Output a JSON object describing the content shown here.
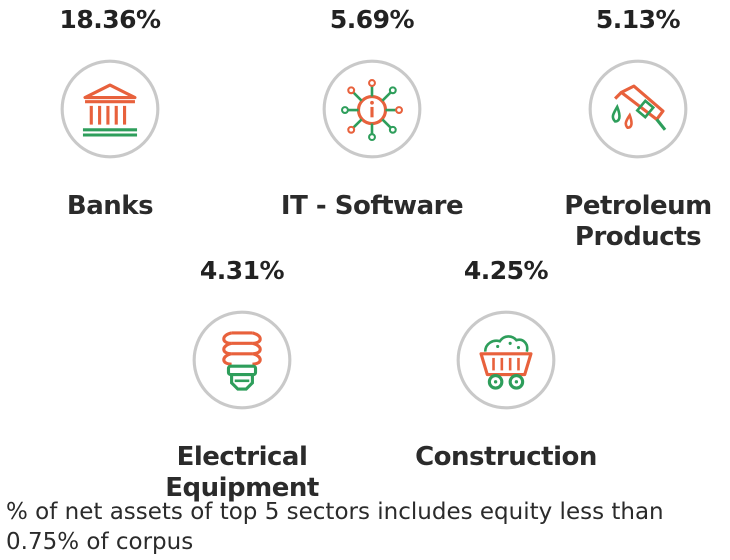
{
  "chart_data": {
    "type": "table",
    "title": "",
    "sectors": [
      {
        "name": "Banks",
        "value": 18.36,
        "value_label": "18.36%",
        "icon": "bank-building-icon"
      },
      {
        "name": "IT - Software",
        "value": 5.69,
        "value_label": "5.69%",
        "icon": "circuit-chip-icon"
      },
      {
        "name": "Petroleum Products",
        "value": 5.13,
        "value_label": "5.13%",
        "icon": "fuel-nozzle-icon"
      },
      {
        "name": "Electrical Equipment",
        "value": 4.31,
        "value_label": "4.31%",
        "icon": "cfl-bulb-icon"
      },
      {
        "name": "Construction",
        "value": 4.25,
        "value_label": "4.25%",
        "icon": "mining-cart-icon"
      }
    ]
  },
  "footnote": "% of net assets of top 5 sectors includes equity less than 0.75% of corpus",
  "colors": {
    "accent_orange": "#E8613C",
    "accent_green": "#2E9E5B",
    "circle": "#c9c9c9"
  }
}
